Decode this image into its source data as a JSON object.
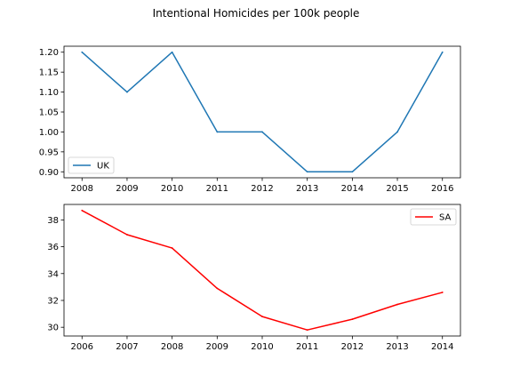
{
  "figure": {
    "title": "Intentional Homicides per 100k people"
  },
  "chart_data": [
    {
      "type": "line",
      "title": "",
      "xlabel": "",
      "ylabel": "",
      "x": [
        2008,
        2009,
        2010,
        2011,
        2012,
        2013,
        2014,
        2015,
        2016
      ],
      "series": [
        {
          "name": "UK",
          "color": "#1f77b4",
          "values": [
            1.2,
            1.1,
            1.2,
            1.0,
            1.0,
            0.9,
            0.9,
            1.0,
            1.2
          ]
        }
      ],
      "xlim": [
        2007.6,
        2016.4
      ],
      "ylim": [
        0.885,
        1.215
      ],
      "xticks": [
        2008,
        2009,
        2010,
        2011,
        2012,
        2013,
        2014,
        2015,
        2016
      ],
      "yticks": [
        0.9,
        0.95,
        1.0,
        1.05,
        1.1,
        1.15,
        1.2
      ],
      "ytick_decimals": 2,
      "grid": false,
      "legend": "lower-left"
    },
    {
      "type": "line",
      "title": "",
      "xlabel": "",
      "ylabel": "",
      "x": [
        2006,
        2007,
        2008,
        2009,
        2010,
        2011,
        2012,
        2013,
        2014
      ],
      "series": [
        {
          "name": "SA",
          "color": "#ff0000",
          "values": [
            38.7,
            36.9,
            35.9,
            32.9,
            30.8,
            29.8,
            30.6,
            31.7,
            32.6
          ]
        }
      ],
      "xlim": [
        2005.6,
        2014.4
      ],
      "ylim": [
        29.35,
        39.15
      ],
      "xticks": [
        2006,
        2007,
        2008,
        2009,
        2010,
        2011,
        2012,
        2013,
        2014
      ],
      "yticks": [
        30,
        32,
        34,
        36,
        38
      ],
      "ytick_decimals": 0,
      "grid": false,
      "legend": "upper-right"
    }
  ]
}
